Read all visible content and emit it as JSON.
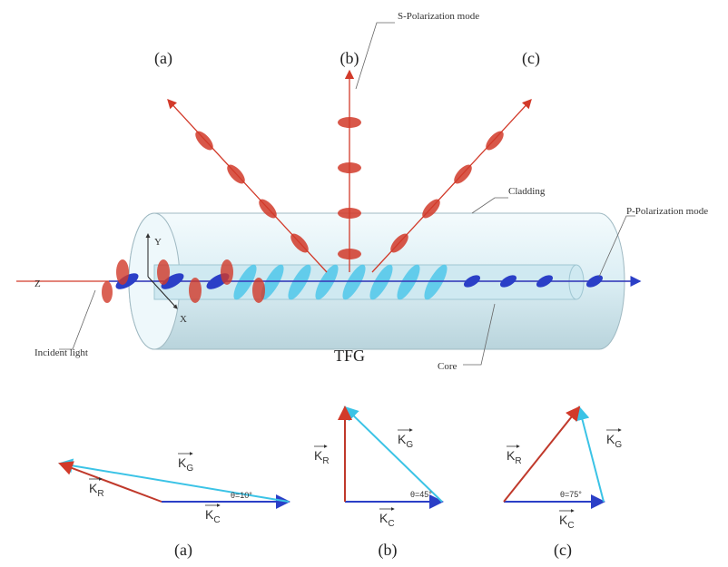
{
  "top_labels": [
    "(a)",
    "(b)",
    "(c)"
  ],
  "annotations": {
    "s_mode": "S-Polarization mode",
    "p_mode": "P-Polarization mode",
    "cladding": "Cladding",
    "core": "Core",
    "incident": "Incident light",
    "fiber": "TFG"
  },
  "axes": {
    "y": "Y",
    "z": "Z",
    "x": "X"
  },
  "diagrams": [
    {
      "label": "(a)",
      "angle": "θ=10°",
      "kg": {
        "symbol": "K",
        "sub": "G"
      },
      "kr": {
        "symbol": "K",
        "sub": "R"
      },
      "kc": {
        "symbol": "K",
        "sub": "C"
      }
    },
    {
      "label": "(b)",
      "angle": "θ=45°",
      "kg": {
        "symbol": "K",
        "sub": "G"
      },
      "kr": {
        "symbol": "K",
        "sub": "R"
      },
      "kc": {
        "symbol": "K",
        "sub": "C"
      }
    },
    {
      "label": "(c)",
      "angle": "θ=75°",
      "kg": {
        "symbol": "K",
        "sub": "G"
      },
      "kr": {
        "symbol": "K",
        "sub": "R"
      },
      "kc": {
        "symbol": "K",
        "sub": "C"
      }
    }
  ]
}
